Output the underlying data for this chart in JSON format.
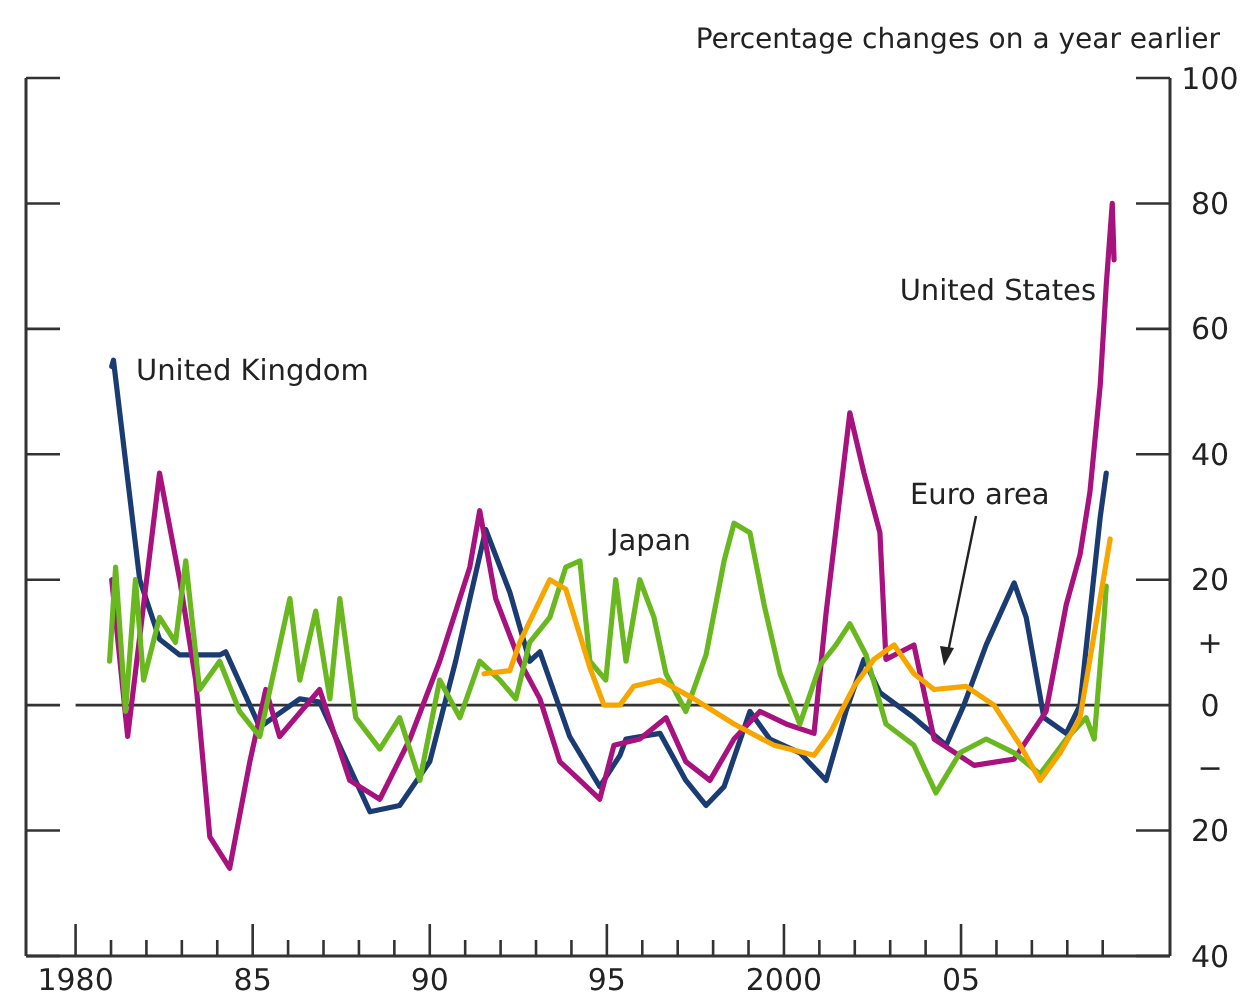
{
  "chart_data": {
    "type": "line",
    "ylabel": "Percentage changes on a year earlier",
    "xlim": [
      1978.6,
      2010.9
    ],
    "xticks": [
      {
        "value": 1980,
        "label": "1980"
      },
      {
        "value": 1981,
        "label": null
      },
      {
        "value": 1982,
        "label": null
      },
      {
        "value": 1983,
        "label": null
      },
      {
        "value": 1984,
        "label": null
      },
      {
        "value": 1985,
        "label": "85"
      },
      {
        "value": 1986,
        "label": null
      },
      {
        "value": 1987,
        "label": null
      },
      {
        "value": 1988,
        "label": null
      },
      {
        "value": 1989,
        "label": null
      },
      {
        "value": 1990,
        "label": "90"
      },
      {
        "value": 1991,
        "label": null
      },
      {
        "value": 1992,
        "label": null
      },
      {
        "value": 1993,
        "label": null
      },
      {
        "value": 1994,
        "label": null
      },
      {
        "value": 1995,
        "label": "95"
      },
      {
        "value": 1996,
        "label": null
      },
      {
        "value": 1997,
        "label": null
      },
      {
        "value": 1998,
        "label": null
      },
      {
        "value": 1999,
        "label": null
      },
      {
        "value": 2000,
        "label": "2000"
      },
      {
        "value": 2001,
        "label": null
      },
      {
        "value": 2002,
        "label": null
      },
      {
        "value": 2003,
        "label": null
      },
      {
        "value": 2004,
        "label": null
      },
      {
        "value": 2005,
        "label": "05"
      },
      {
        "value": 2006,
        "label": null
      },
      {
        "value": 2007,
        "label": null
      },
      {
        "value": 2008,
        "label": null
      },
      {
        "value": 2009,
        "label": null
      }
    ],
    "ylim": [
      -40,
      100
    ],
    "yticks": [
      100,
      80,
      60,
      40,
      20,
      {
        "value": 10,
        "label": "+"
      },
      0,
      {
        "value": -10,
        "label": "−"
      },
      {
        "value": -20,
        "label": "20"
      },
      {
        "value": -40,
        "label": "40"
      }
    ],
    "ref_lines": [
      {
        "axis": "y",
        "value": 0,
        "label": null,
        "color": "#333333"
      }
    ],
    "grid": false,
    "legend": false,
    "marker": "none",
    "line_style": "solid",
    "series": [
      {
        "name": "United Kingdom",
        "color": "#1b3c73",
        "x": [
          1981.02,
          1981.07,
          1981.81,
          1982.37,
          1982.94,
          1983.5,
          1984.07,
          1984.24,
          1985.2,
          1986.33,
          1986.89,
          1987.74,
          1988.31,
          1989.15,
          1990,
          1990.73,
          1991.58,
          1992.26,
          1992.82,
          1993.11,
          1993.95,
          1994.8,
          1995.37,
          1995.54,
          1996.5,
          1997.23,
          1997.8,
          1998.31,
          1999.04,
          1999.6,
          2000.45,
          2001.19,
          2001.75,
          2002.26,
          2002.71,
          2003.67,
          2004.58,
          2005.08,
          2005.71,
          2006.5,
          2006.84,
          2007.34,
          2007.97,
          2008.36,
          2008.93,
          2009.1
        ],
        "values": [
          54,
          55,
          20,
          10.5,
          8,
          8,
          8,
          8.5,
          -3.5,
          1,
          0.5,
          -10,
          -17,
          -16,
          -9,
          7,
          28,
          18,
          7,
          8.5,
          -5,
          -13,
          -8,
          -5.4,
          -4.5,
          -12,
          -16,
          -13,
          -1,
          -5.4,
          -7.6,
          -12,
          -1,
          7.3,
          2,
          -2,
          -6.4,
          0,
          9.6,
          19.5,
          14,
          -2,
          -4.5,
          0,
          30,
          37
        ]
      },
      {
        "name": "United States",
        "color": "#a8127f",
        "x": [
          1981.02,
          1981.47,
          1982.37,
          1982.94,
          1983.39,
          1983.79,
          1984.35,
          1984.92,
          1985.37,
          1985.76,
          1986.89,
          1987.74,
          1988.59,
          1989.44,
          1990.28,
          1991.13,
          1991.41,
          1991.86,
          1992.54,
          1993.11,
          1993.67,
          1994.24,
          1994.8,
          1995.2,
          1995.93,
          1996.67,
          1997.23,
          1997.91,
          1998.59,
          1999.32,
          2000.06,
          2000.85,
          2001.19,
          2001.86,
          2002.26,
          2002.71,
          2002.88,
          2003.67,
          2004.24,
          2005.37,
          2006.5,
          2007.4,
          2007.97,
          2008.36,
          2008.64,
          2008.93,
          2009.1,
          2009.27,
          2009.32
        ],
        "values": [
          20,
          -5,
          37,
          20,
          4,
          -21,
          -26,
          -9,
          2.5,
          -5,
          2.5,
          -12,
          -15,
          -5.4,
          7,
          22,
          31,
          17,
          7,
          1,
          -9,
          -12,
          -15,
          -6.4,
          -5.4,
          -2,
          -9,
          -12,
          -5.4,
          -1,
          -3,
          -4.5,
          14.7,
          46.6,
          37,
          27.5,
          7.3,
          9.6,
          -5.4,
          -9.6,
          -8.6,
          -1,
          16,
          24,
          34,
          51,
          67,
          80,
          71
        ]
      },
      {
        "name": "Japan",
        "color": "#6ab820",
        "x": [
          1980.96,
          1981.13,
          1981.41,
          1981.69,
          1981.92,
          1982.37,
          1982.82,
          1983.11,
          1983.5,
          1984.07,
          1984.63,
          1985.2,
          1986.05,
          1986.33,
          1986.78,
          1987.18,
          1987.46,
          1987.91,
          1988.59,
          1989.15,
          1989.72,
          1990.28,
          1990.85,
          1991.41,
          1991.98,
          1992.43,
          1992.82,
          1993.39,
          1993.84,
          1994.24,
          1994.52,
          1994.97,
          1995.25,
          1995.54,
          1995.93,
          1996.33,
          1996.67,
          1997.23,
          1997.8,
          1998.31,
          1998.59,
          1999.04,
          1999.44,
          1999.89,
          2000.45,
          2001.02,
          2001.47,
          2001.86,
          2002.32,
          2002.88,
          2003.67,
          2004.29,
          2004.97,
          2005.71,
          2006.5,
          2007.23,
          2007.97,
          2008.53,
          2008.76,
          2009.04,
          2009.1
        ],
        "values": [
          7,
          22,
          -1,
          20,
          4,
          14,
          10,
          23,
          2.5,
          7,
          -1,
          -5,
          17,
          4,
          15,
          1,
          17,
          -2,
          -7,
          -2,
          -12,
          4,
          -2,
          7,
          4,
          1,
          10,
          14,
          22,
          23,
          7,
          4,
          20,
          7,
          20,
          14,
          5,
          -1,
          8,
          23,
          29,
          27.5,
          16,
          5,
          -3,
          6.4,
          9.6,
          13,
          8,
          -3,
          -6.4,
          -14,
          -7.6,
          -5.4,
          -7.6,
          -11,
          -5.4,
          -2,
          -5.4,
          14,
          19
        ]
      },
      {
        "name": "Euro area",
        "color": "#f7a600",
        "x": [
          1991.53,
          1992.26,
          1992.54,
          1993.39,
          1993.84,
          1994.52,
          1994.92,
          1995.37,
          1995.76,
          1996.5,
          1997.46,
          1998.59,
          1999.72,
          2000.85,
          2001.3,
          2001.98,
          2002.54,
          2003.11,
          2003.67,
          2004.24,
          2005.14,
          2005.93,
          2006.67,
          2007.23,
          2007.8,
          2008.36,
          2008.81,
          2009.21
        ],
        "values": [
          5,
          5.5,
          10,
          20,
          18.5,
          6,
          0,
          0,
          3,
          4,
          1,
          -3,
          -6.4,
          -8,
          -4.5,
          3,
          7.3,
          9.6,
          5,
          2.5,
          3,
          0,
          -6.4,
          -12,
          -7.6,
          -2,
          13,
          26.5
        ]
      }
    ]
  }
}
